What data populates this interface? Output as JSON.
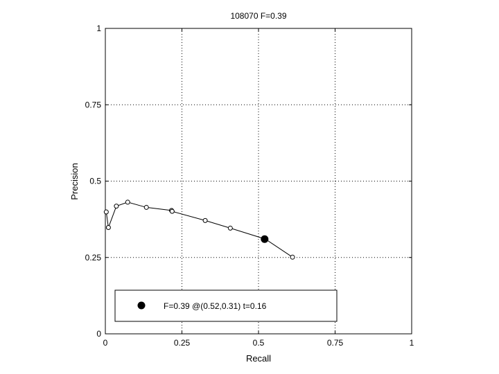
{
  "chart_data": {
    "type": "line",
    "title": "108070 F=0.39",
    "xlabel": "Recall",
    "ylabel": "Precision",
    "xlim": [
      0,
      1
    ],
    "ylim": [
      0,
      1
    ],
    "grid": true,
    "xticks": [
      0,
      0.25,
      0.5,
      0.75,
      1
    ],
    "yticks": [
      0,
      0.25,
      0.5,
      0.75,
      1
    ],
    "xtick_labels": [
      "0",
      "0.25",
      "0.5",
      "0.75",
      "1"
    ],
    "ytick_labels": [
      "0",
      "0.25",
      "0.5",
      "0.75",
      "1"
    ],
    "series": [
      {
        "marker": "open-circle",
        "color": "#000000",
        "x": [
          0.003,
          0.01,
          0.036,
          0.073,
          0.134,
          0.216,
          0.218,
          0.326,
          0.408,
          0.523,
          0.611
        ],
        "y": [
          0.399,
          0.348,
          0.418,
          0.431,
          0.414,
          0.404,
          0.401,
          0.371,
          0.346,
          0.31,
          0.251
        ]
      }
    ],
    "highlight": {
      "x": 0.52,
      "y": 0.31,
      "marker": "filled-circle",
      "color": "#000000"
    },
    "legend": {
      "placement": "bottom-left",
      "entries": [
        {
          "label": "F=0.39 @(0.52,0.31) t=0.16",
          "marker": "filled-circle"
        }
      ]
    }
  }
}
